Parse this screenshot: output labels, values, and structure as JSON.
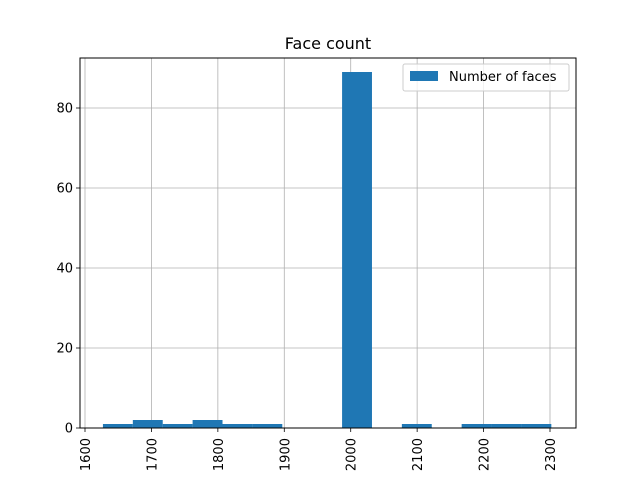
{
  "chart_data": {
    "type": "bar",
    "title": "Face count",
    "xlabel": "",
    "ylabel": "",
    "xlim": [
      1600,
      2300
    ],
    "ylim": [
      0,
      90
    ],
    "x_ticks": [
      1600,
      1700,
      1800,
      1900,
      2000,
      2100,
      2200,
      2300
    ],
    "x_tick_labels": [
      "1600",
      "1700",
      "1800",
      "1900",
      "2000",
      "2100",
      "2200",
      "2300"
    ],
    "y_ticks": [
      0,
      20,
      40,
      60,
      80
    ],
    "y_tick_labels": [
      "0",
      "20",
      "40",
      "60",
      "80"
    ],
    "grid": true,
    "legend": {
      "position": "top-right",
      "entries": [
        "Number of faces"
      ]
    },
    "series": [
      {
        "name": "Number of faces",
        "color": "#1f77b4",
        "bins": [
          {
            "x0": 1627,
            "x1": 1672,
            "value": 1
          },
          {
            "x0": 1672,
            "x1": 1717,
            "value": 2
          },
          {
            "x0": 1717,
            "x1": 1762,
            "value": 1
          },
          {
            "x0": 1762,
            "x1": 1807,
            "value": 2
          },
          {
            "x0": 1807,
            "x1": 1852,
            "value": 1
          },
          {
            "x0": 1852,
            "x1": 1897,
            "value": 1
          },
          {
            "x0": 1987,
            "x1": 2032,
            "value": 89
          },
          {
            "x0": 2077,
            "x1": 2122,
            "value": 1
          },
          {
            "x0": 2167,
            "x1": 2212,
            "value": 1
          },
          {
            "x0": 2212,
            "x1": 2257,
            "value": 1
          },
          {
            "x0": 2257,
            "x1": 2302,
            "value": 1
          }
        ]
      }
    ]
  }
}
